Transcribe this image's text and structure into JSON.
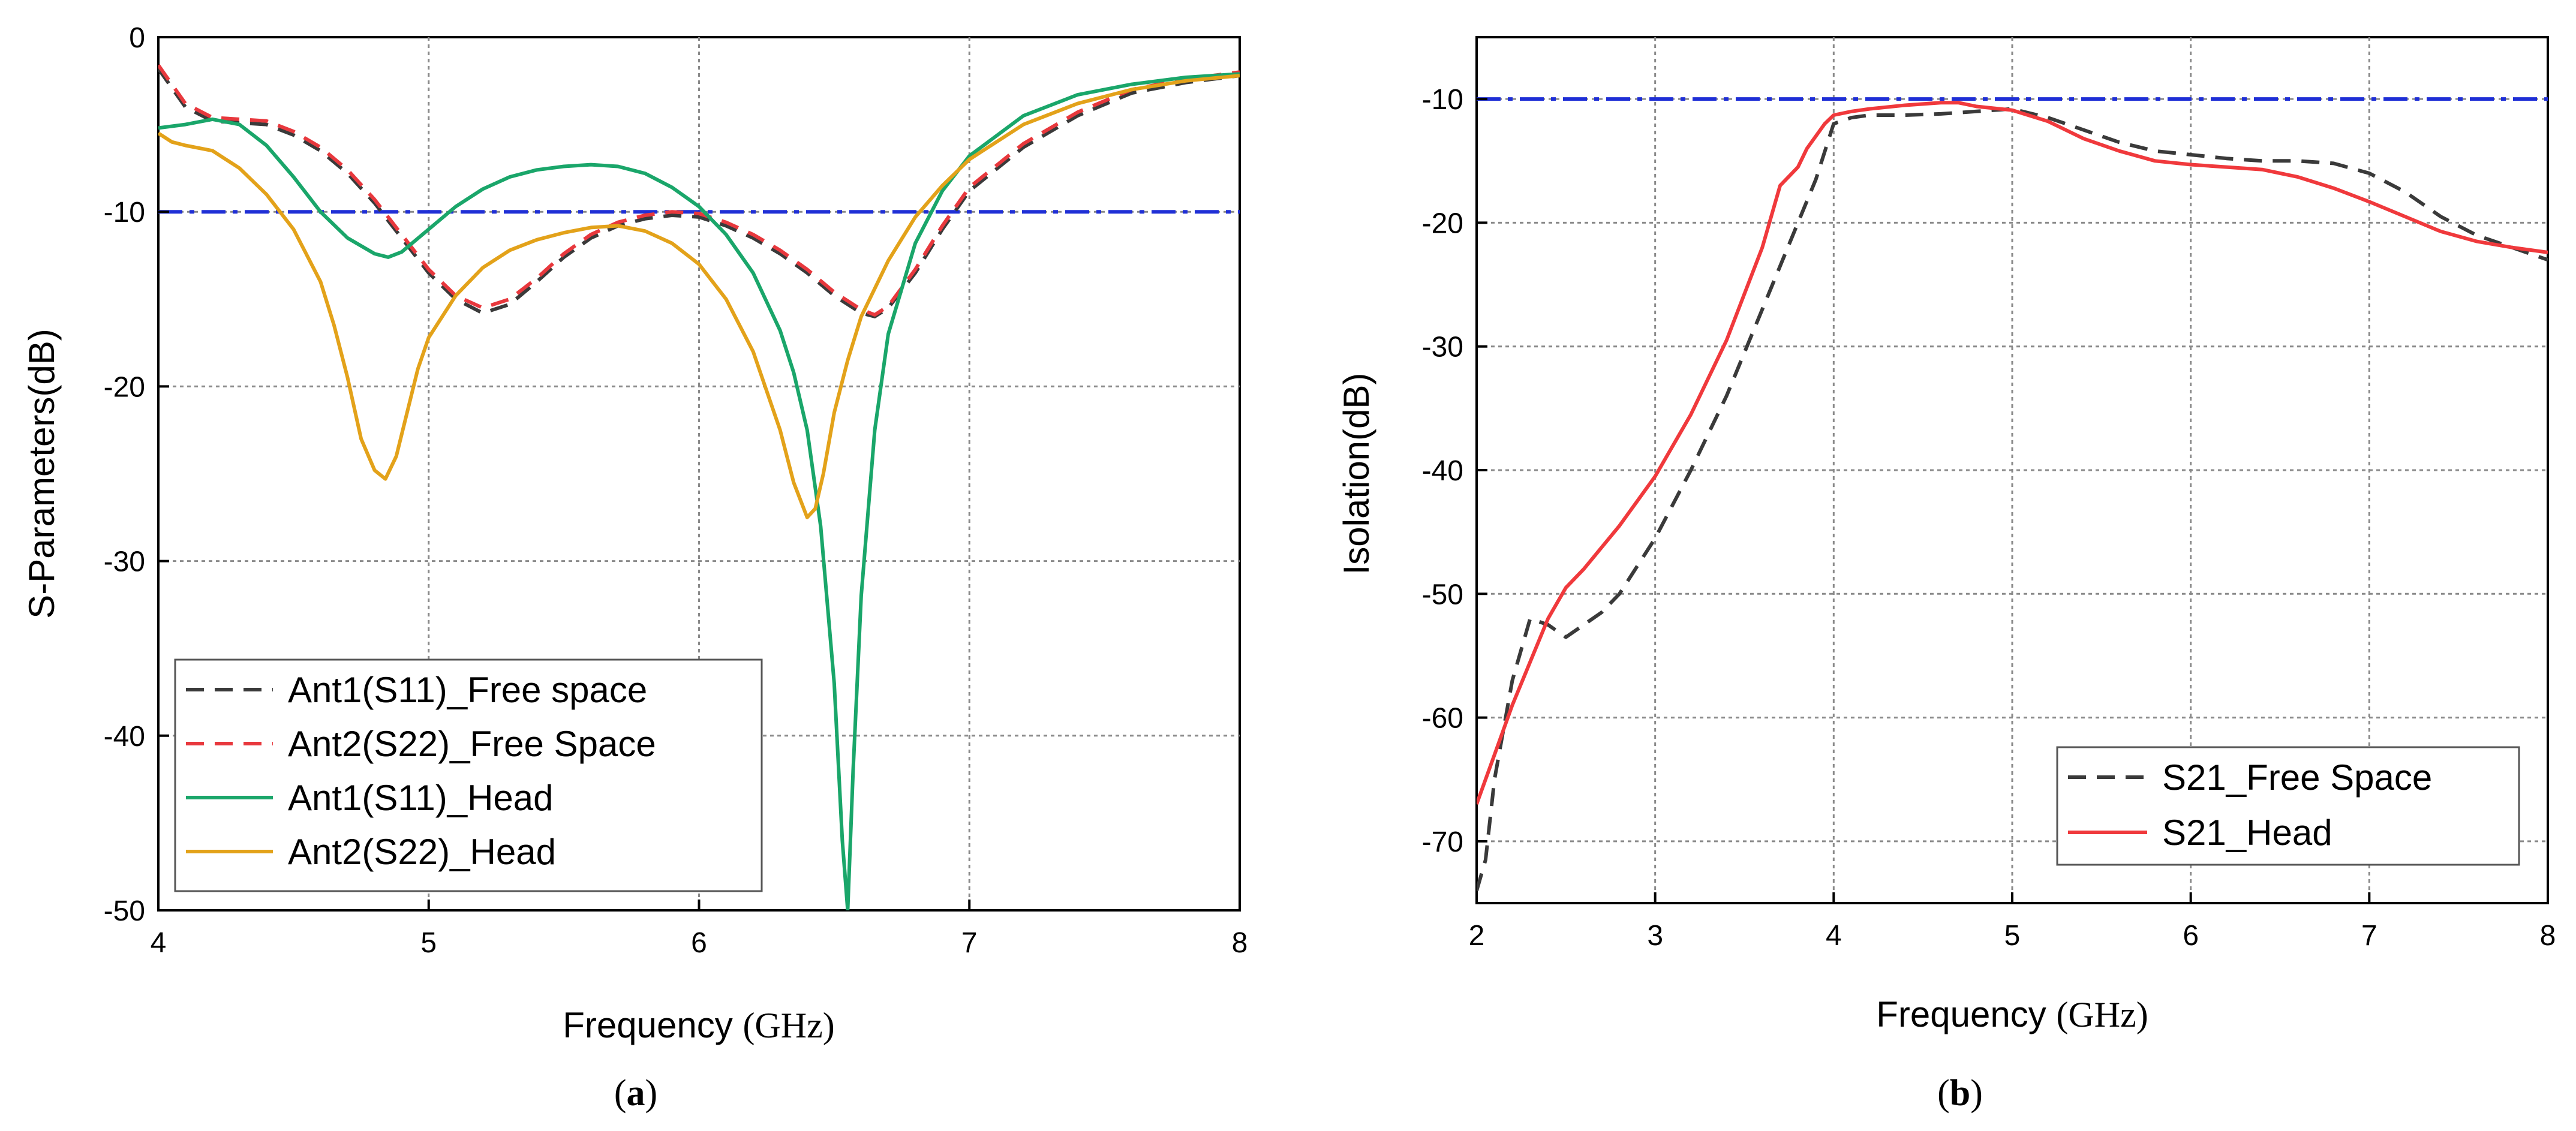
{
  "chart_data": [
    {
      "id": "a",
      "type": "line",
      "caption_open": "(",
      "caption_letter": "a",
      "caption_close": ")",
      "xlabel": "Frequency",
      "xunit": "(GHz)",
      "ylabel": "S-Parameters(dB)",
      "xlim": [
        4,
        8
      ],
      "ylim": [
        -50,
        0
      ],
      "xticks": [
        4,
        5,
        6,
        7,
        8
      ],
      "yticks": [
        0,
        -10,
        -20,
        -30,
        -40,
        -50
      ],
      "grid": true,
      "reference_line": {
        "y": -10,
        "color": "#1f2fd6"
      },
      "legend_position": "bottom-left",
      "series": [
        {
          "name": "Ant1(S11)_Free space",
          "color": "#3a3a3a",
          "dash": true,
          "x": [
            4.0,
            4.1,
            4.2,
            4.3,
            4.4,
            4.5,
            4.6,
            4.7,
            4.8,
            4.9,
            5.0,
            5.1,
            5.2,
            5.3,
            5.4,
            5.5,
            5.6,
            5.7,
            5.8,
            5.9,
            6.0,
            6.1,
            6.2,
            6.3,
            6.4,
            6.5,
            6.6,
            6.65,
            6.7,
            6.8,
            6.9,
            7.0,
            7.2,
            7.4,
            7.6,
            7.8,
            8.0
          ],
          "y": [
            -1.8,
            -4.0,
            -4.8,
            -4.9,
            -5.0,
            -5.6,
            -6.5,
            -7.8,
            -9.5,
            -11.5,
            -13.5,
            -15.0,
            -15.8,
            -15.3,
            -14.0,
            -12.6,
            -11.5,
            -10.8,
            -10.4,
            -10.2,
            -10.3,
            -10.8,
            -11.5,
            -12.4,
            -13.5,
            -14.8,
            -15.8,
            -16.0,
            -15.5,
            -13.5,
            -11.0,
            -8.8,
            -6.3,
            -4.5,
            -3.2,
            -2.6,
            -2.2
          ]
        },
        {
          "name": "Ant2(S22)_Free Space",
          "color": "#e8383d",
          "dash": true,
          "x": [
            4.0,
            4.1,
            4.2,
            4.3,
            4.4,
            4.5,
            4.6,
            4.7,
            4.8,
            4.9,
            5.0,
            5.1,
            5.2,
            5.3,
            5.4,
            5.5,
            5.6,
            5.7,
            5.8,
            5.9,
            6.0,
            6.1,
            6.2,
            6.3,
            6.4,
            6.5,
            6.6,
            6.65,
            6.7,
            6.8,
            6.9,
            7.0,
            7.2,
            7.4,
            7.6,
            7.8,
            8.0
          ],
          "y": [
            -1.6,
            -3.8,
            -4.6,
            -4.7,
            -4.8,
            -5.4,
            -6.3,
            -7.6,
            -9.3,
            -11.3,
            -13.3,
            -14.8,
            -15.5,
            -15.0,
            -13.8,
            -12.4,
            -11.3,
            -10.6,
            -10.2,
            -10.0,
            -10.1,
            -10.6,
            -11.3,
            -12.2,
            -13.3,
            -14.6,
            -15.6,
            -15.9,
            -15.4,
            -13.3,
            -10.8,
            -8.6,
            -6.1,
            -4.3,
            -3.0,
            -2.4,
            -2.0
          ]
        },
        {
          "name": "Ant1(S11)_Head",
          "color": "#1aa66a",
          "dash": false,
          "x": [
            4.0,
            4.1,
            4.2,
            4.3,
            4.4,
            4.5,
            4.6,
            4.7,
            4.8,
            4.85,
            4.9,
            5.0,
            5.1,
            5.2,
            5.3,
            5.4,
            5.5,
            5.6,
            5.7,
            5.8,
            5.9,
            6.0,
            6.1,
            6.2,
            6.3,
            6.35,
            6.4,
            6.45,
            6.5,
            6.53,
            6.55,
            6.57,
            6.6,
            6.65,
            6.7,
            6.8,
            6.9,
            7.0,
            7.2,
            7.4,
            7.6,
            7.8,
            8.0
          ],
          "y": [
            -5.2,
            -5.0,
            -4.7,
            -5.0,
            -6.2,
            -8.0,
            -10.0,
            -11.5,
            -12.4,
            -12.6,
            -12.3,
            -11.0,
            -9.7,
            -8.7,
            -8.0,
            -7.6,
            -7.4,
            -7.3,
            -7.4,
            -7.8,
            -8.6,
            -9.7,
            -11.3,
            -13.5,
            -16.8,
            -19.2,
            -22.5,
            -28.0,
            -37.0,
            -46.0,
            -50.0,
            -42.0,
            -32.0,
            -22.5,
            -17.0,
            -11.8,
            -8.8,
            -6.8,
            -4.5,
            -3.3,
            -2.7,
            -2.3,
            -2.1
          ]
        },
        {
          "name": "Ant2(S22)_Head",
          "color": "#e3a21a",
          "dash": false,
          "x": [
            4.0,
            4.05,
            4.1,
            4.2,
            4.3,
            4.4,
            4.5,
            4.6,
            4.65,
            4.7,
            4.75,
            4.8,
            4.84,
            4.88,
            4.92,
            4.96,
            5.0,
            5.1,
            5.2,
            5.3,
            5.4,
            5.5,
            5.6,
            5.7,
            5.8,
            5.9,
            6.0,
            6.1,
            6.2,
            6.3,
            6.35,
            6.4,
            6.43,
            6.46,
            6.5,
            6.55,
            6.6,
            6.7,
            6.8,
            6.9,
            7.0,
            7.2,
            7.4,
            7.6,
            7.8,
            8.0
          ],
          "y": [
            -5.5,
            -6.0,
            -6.2,
            -6.5,
            -7.5,
            -9.0,
            -11.0,
            -14.0,
            -16.5,
            -19.5,
            -23.0,
            -24.8,
            -25.3,
            -24.0,
            -21.5,
            -19.0,
            -17.2,
            -14.8,
            -13.2,
            -12.2,
            -11.6,
            -11.2,
            -10.9,
            -10.8,
            -11.1,
            -11.8,
            -13.0,
            -15.0,
            -18.0,
            -22.5,
            -25.5,
            -27.5,
            -27.0,
            -25.0,
            -21.5,
            -18.5,
            -16.0,
            -12.8,
            -10.3,
            -8.5,
            -7.0,
            -5.0,
            -3.8,
            -3.0,
            -2.5,
            -2.2
          ]
        }
      ]
    },
    {
      "id": "b",
      "type": "line",
      "caption_open": "(",
      "caption_letter": "b",
      "caption_close": ")",
      "xlabel": "Frequency",
      "xunit": "(GHz)",
      "ylabel": "Isolation(dB)",
      "xlim": [
        2,
        8
      ],
      "ylim": [
        -75,
        -5
      ],
      "xticks": [
        2,
        3,
        4,
        5,
        6,
        7,
        8
      ],
      "yticks": [
        -10,
        -20,
        -30,
        -40,
        -50,
        -60,
        -70
      ],
      "grid": true,
      "reference_line": {
        "y": -10,
        "color": "#1f2fd6"
      },
      "legend_position": "bottom-right",
      "series": [
        {
          "name": "S21_Free Space",
          "color": "#3a3a3a",
          "dash": true,
          "x": [
            2.0,
            2.05,
            2.1,
            2.2,
            2.3,
            2.4,
            2.5,
            2.6,
            2.7,
            2.8,
            3.0,
            3.2,
            3.4,
            3.6,
            3.8,
            3.9,
            4.0,
            4.1,
            4.2,
            4.4,
            4.6,
            4.8,
            5.0,
            5.2,
            5.4,
            5.6,
            5.8,
            6.0,
            6.2,
            6.4,
            6.6,
            6.8,
            7.0,
            7.2,
            7.4,
            7.6,
            7.8,
            8.0
          ],
          "y": [
            -74.0,
            -71.5,
            -65.0,
            -57.0,
            -52.0,
            -52.5,
            -53.5,
            -52.5,
            -51.5,
            -50.0,
            -45.5,
            -40.0,
            -34.0,
            -27.0,
            -20.0,
            -16.5,
            -12.0,
            -11.5,
            -11.3,
            -11.3,
            -11.2,
            -11.0,
            -10.8,
            -11.5,
            -12.5,
            -13.5,
            -14.2,
            -14.5,
            -14.8,
            -15.0,
            -15.0,
            -15.2,
            -16.0,
            -17.5,
            -19.5,
            -21.0,
            -22.0,
            -23.0
          ]
        },
        {
          "name": "S21_Head",
          "color": "#f0393c",
          "dash": false,
          "x": [
            2.0,
            2.1,
            2.2,
            2.3,
            2.4,
            2.5,
            2.6,
            2.8,
            3.0,
            3.2,
            3.4,
            3.6,
            3.7,
            3.8,
            3.85,
            3.9,
            3.95,
            4.0,
            4.1,
            4.2,
            4.4,
            4.6,
            4.7,
            4.8,
            5.0,
            5.2,
            5.4,
            5.6,
            5.8,
            6.0,
            6.2,
            6.4,
            6.6,
            6.8,
            7.0,
            7.2,
            7.4,
            7.6,
            7.8,
            8.0
          ],
          "y": [
            -67.0,
            -63.0,
            -59.0,
            -55.5,
            -52.0,
            -49.5,
            -48.0,
            -44.5,
            -40.5,
            -35.5,
            -29.5,
            -22.0,
            -17.0,
            -15.5,
            -14.0,
            -13.0,
            -12.0,
            -11.3,
            -11.0,
            -10.8,
            -10.5,
            -10.3,
            -10.3,
            -10.6,
            -10.9,
            -11.8,
            -13.2,
            -14.2,
            -15.0,
            -15.3,
            -15.5,
            -15.7,
            -16.3,
            -17.2,
            -18.3,
            -19.5,
            -20.7,
            -21.5,
            -22.0,
            -22.4
          ]
        }
      ]
    }
  ]
}
